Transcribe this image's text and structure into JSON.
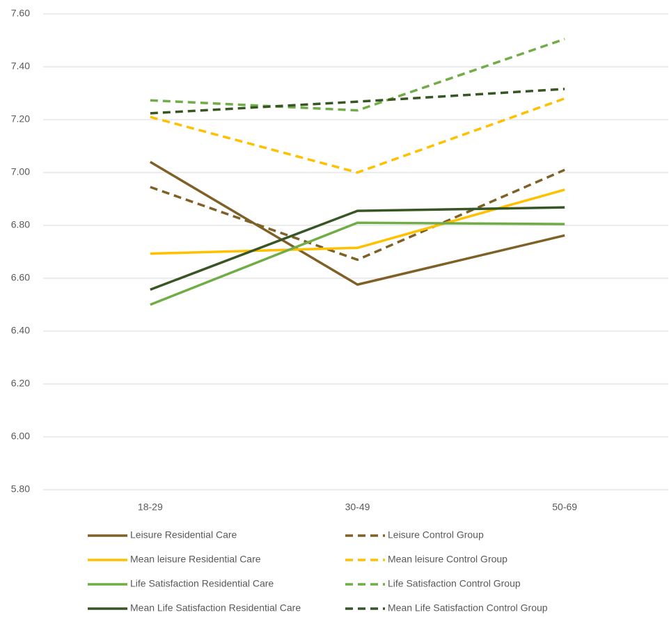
{
  "chart_data": {
    "type": "line",
    "categories": [
      "18-29",
      "30-49",
      "50-69"
    ],
    "series": [
      {
        "name": "Leisure Residential Care",
        "color": "#7f6128",
        "dashed": false,
        "values": [
          7.04,
          6.576,
          6.762
        ]
      },
      {
        "name": "Leisure Control Group",
        "color": "#7f6128",
        "dashed": true,
        "values": [
          6.945,
          6.67,
          7.01
        ]
      },
      {
        "name": "Mean leisure Residential Care",
        "color": "#ffc000",
        "dashed": false,
        "values": [
          6.693,
          6.715,
          6.935
        ]
      },
      {
        "name": "Mean leisure Control Group",
        "color": "#ffc000",
        "dashed": true,
        "values": [
          7.21,
          7.0,
          7.28
        ]
      },
      {
        "name": "Life Satisfaction Residential Care",
        "color": "#70ad47",
        "dashed": false,
        "values": [
          6.5,
          6.81,
          6.805
        ]
      },
      {
        "name": "Life Satisfaction Control Group",
        "color": "#70ad47",
        "dashed": true,
        "values": [
          7.273,
          7.235,
          7.505
        ]
      },
      {
        "name": "Mean Life Satisfaction Residential Care",
        "color": "#375623",
        "dashed": false,
        "values": [
          6.557,
          6.855,
          6.868
        ]
      },
      {
        "name": "Mean Life Satisfaction Control Group",
        "color": "#375623",
        "dashed": true,
        "values": [
          7.224,
          7.268,
          7.316
        ]
      }
    ],
    "ylim": [
      5.8,
      7.6
    ],
    "yticks": [
      {
        "value": 5.8,
        "label": "5.80"
      },
      {
        "value": 6.0,
        "label": "6.00"
      },
      {
        "value": 6.2,
        "label": "6.20"
      },
      {
        "value": 6.4,
        "label": "6.40"
      },
      {
        "value": 6.6,
        "label": "6.60"
      },
      {
        "value": 6.8,
        "label": "6.80"
      },
      {
        "value": 7.0,
        "label": "7.00"
      },
      {
        "value": 7.2,
        "label": "7.20"
      },
      {
        "value": 7.4,
        "label": "7.40"
      },
      {
        "value": 7.6,
        "label": "7.60"
      }
    ],
    "grid": true,
    "legend": "bottom"
  }
}
